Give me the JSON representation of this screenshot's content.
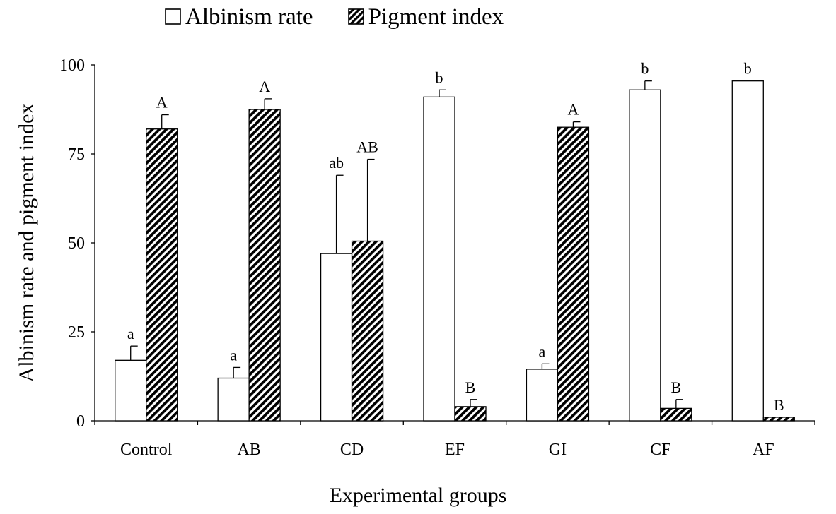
{
  "chart_data": {
    "type": "bar",
    "title": "",
    "xlabel": "Experimental groups",
    "ylabel": "Albinism rate and pigment index",
    "ylim": [
      0,
      100
    ],
    "yticks": [
      0,
      25,
      50,
      75,
      100
    ],
    "grid": false,
    "legend_position": "top",
    "categories": [
      "Control",
      "AB",
      "CD",
      "EF",
      "GI",
      "CF",
      "AF"
    ],
    "series": [
      {
        "name": "Albinism rate",
        "fill": "white",
        "values": [
          17,
          12,
          47,
          91,
          14.5,
          93,
          95.5
        ],
        "error": [
          4,
          3,
          22,
          2,
          1.5,
          2.5,
          0
        ],
        "letters": [
          "a",
          "a",
          "ab",
          "b",
          "a",
          "b",
          "b"
        ]
      },
      {
        "name": "Pigment index",
        "fill": "hatched",
        "values": [
          82,
          87.5,
          50.5,
          4,
          82.5,
          3.5,
          1
        ],
        "error": [
          4,
          3,
          23,
          2,
          1.5,
          2.5,
          0
        ],
        "letters": [
          "A",
          "A",
          "AB",
          "B",
          "A",
          "B",
          "B"
        ]
      }
    ]
  }
}
